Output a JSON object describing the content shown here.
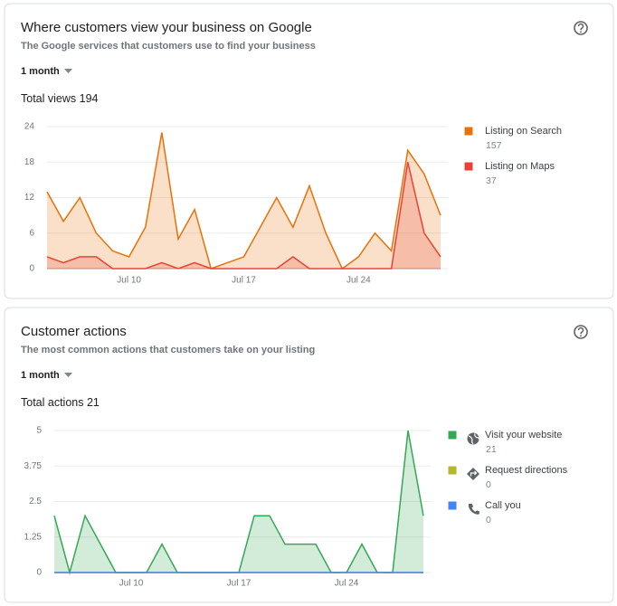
{
  "chart_data": [
    {
      "type": "area",
      "title": "Where customers view your business on Google",
      "subtitle": "The Google services that customers use to find your business",
      "period": "1 month",
      "total_label": "Total views",
      "total": 194,
      "stacked": true,
      "grid": true,
      "categories": [
        null,
        null,
        null,
        null,
        null,
        "Jul 10",
        null,
        null,
        null,
        null,
        null,
        null,
        "Jul 17",
        null,
        null,
        null,
        null,
        null,
        null,
        "Jul 24",
        null,
        null,
        null,
        null,
        null
      ],
      "ylim": [
        0,
        24
      ],
      "yticks": [
        0,
        6,
        12,
        18,
        24
      ],
      "series": [
        {
          "name": "Listing on Search",
          "total": 157,
          "color": "#e8710a",
          "values": [
            11,
            7,
            10,
            4,
            3,
            2,
            7,
            22,
            5,
            9,
            0,
            1,
            2,
            7,
            12,
            5,
            14,
            6,
            0,
            2,
            6,
            3,
            2,
            10,
            7
          ]
        },
        {
          "name": "Listing on Maps",
          "total": 37,
          "color": "#e94235",
          "values": [
            2,
            1,
            2,
            2,
            0,
            0,
            0,
            1,
            0,
            1,
            0,
            0,
            0,
            0,
            0,
            2,
            0,
            0,
            0,
            0,
            0,
            0,
            18,
            6,
            2
          ]
        }
      ]
    },
    {
      "type": "area",
      "title": "Customer actions",
      "subtitle": "The most common actions that customers take on your listing",
      "period": "1 month",
      "total_label": "Total actions",
      "total": 21,
      "stacked": false,
      "grid": true,
      "categories": [
        null,
        null,
        null,
        null,
        null,
        "Jul 10",
        null,
        null,
        null,
        null,
        null,
        null,
        "Jul 17",
        null,
        null,
        null,
        null,
        null,
        null,
        "Jul 24",
        null,
        null,
        null,
        null,
        null
      ],
      "ylim": [
        0,
        5
      ],
      "yticks": [
        0,
        1.25,
        2.5,
        3.75,
        5
      ],
      "series": [
        {
          "name": "Visit your website",
          "total": 21,
          "color": "#34a853",
          "values": [
            2,
            0,
            2,
            1,
            0,
            0,
            0,
            1,
            0,
            0,
            0,
            0,
            0,
            2,
            2,
            1,
            1,
            1,
            0,
            0,
            1,
            0,
            0,
            5,
            2
          ]
        },
        {
          "name": "Request directions",
          "total": 0,
          "color": "#b5b82c",
          "values": [
            0,
            0,
            0,
            0,
            0,
            0,
            0,
            0,
            0,
            0,
            0,
            0,
            0,
            0,
            0,
            0,
            0,
            0,
            0,
            0,
            0,
            0,
            0,
            0,
            0
          ]
        },
        {
          "name": "Call you",
          "total": 0,
          "color": "#4285f4",
          "values": [
            0,
            0,
            0,
            0,
            0,
            0,
            0,
            0,
            0,
            0,
            0,
            0,
            0,
            0,
            0,
            0,
            0,
            0,
            0,
            0,
            0,
            0,
            0,
            0,
            0
          ]
        }
      ]
    }
  ]
}
